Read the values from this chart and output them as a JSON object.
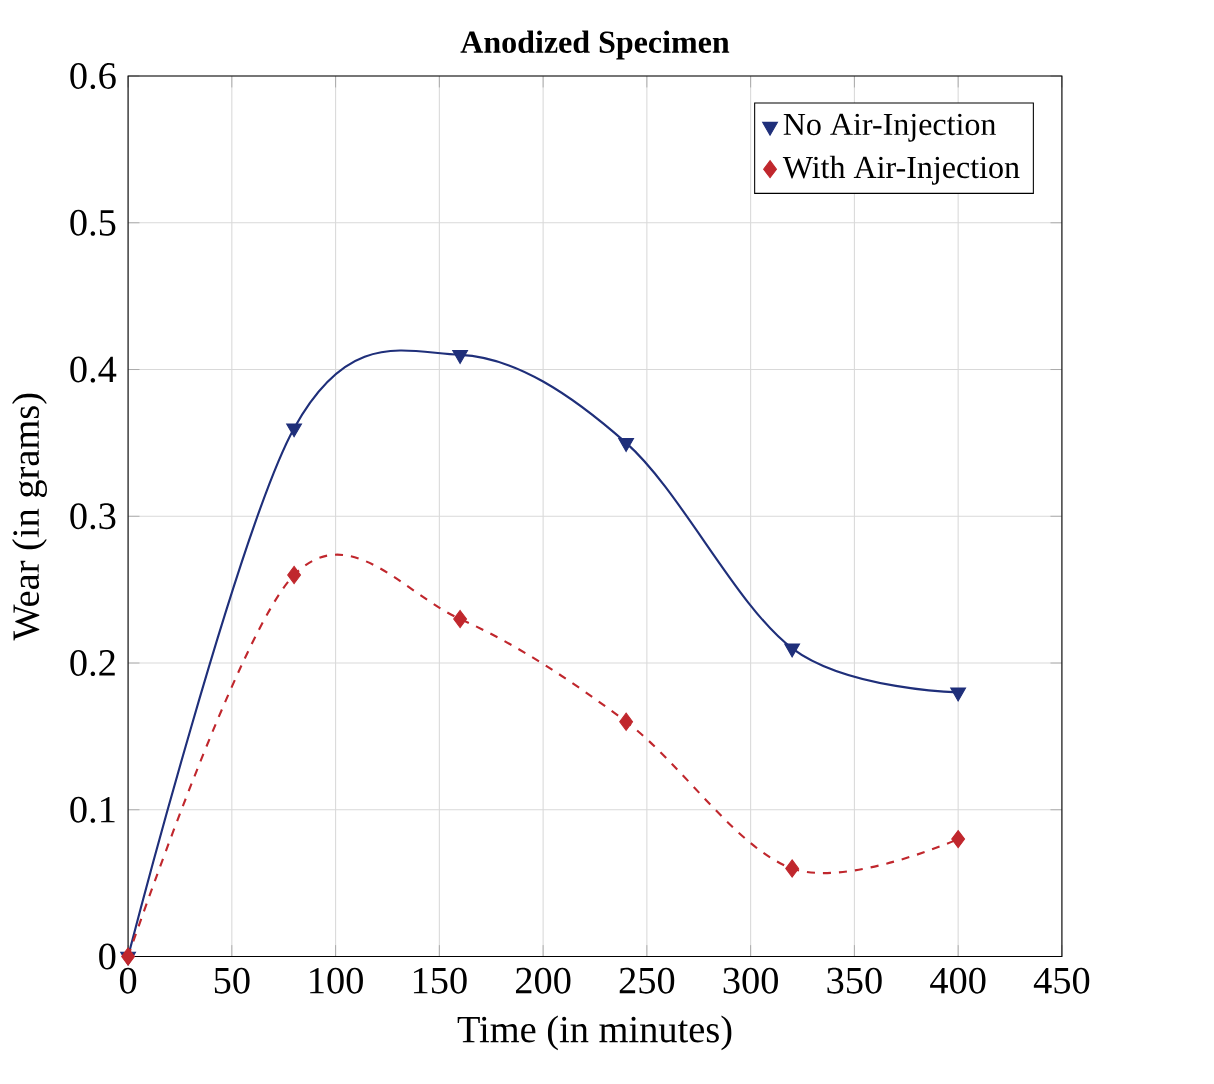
{
  "chart_data": {
    "type": "line",
    "title": "Anodized Specimen",
    "xlabel": "Time (in minutes)",
    "ylabel": "Wear (in grams)",
    "x": [
      0,
      80,
      160,
      240,
      320,
      400
    ],
    "series": [
      {
        "name": "No Air-Injection",
        "color": "#1f2f7a",
        "marker": "triangle",
        "line_style": "solid",
        "values": [
          0,
          0.36,
          0.41,
          0.35,
          0.21,
          0.18
        ]
      },
      {
        "name": "With Air-Injection",
        "color": "#c0272d",
        "marker": "diamond",
        "line_style": "dashed",
        "values": [
          0,
          0.26,
          0.23,
          0.16,
          0.06,
          0.08
        ]
      }
    ],
    "xlim": [
      0,
      450
    ],
    "xticks": [
      0,
      50,
      100,
      150,
      200,
      250,
      300,
      350,
      400,
      450
    ],
    "ylim": [
      0,
      0.6
    ],
    "yticks": [
      0,
      0.1,
      0.2,
      0.3,
      0.4,
      0.5,
      0.6
    ],
    "grid": true,
    "legend": "top right"
  }
}
